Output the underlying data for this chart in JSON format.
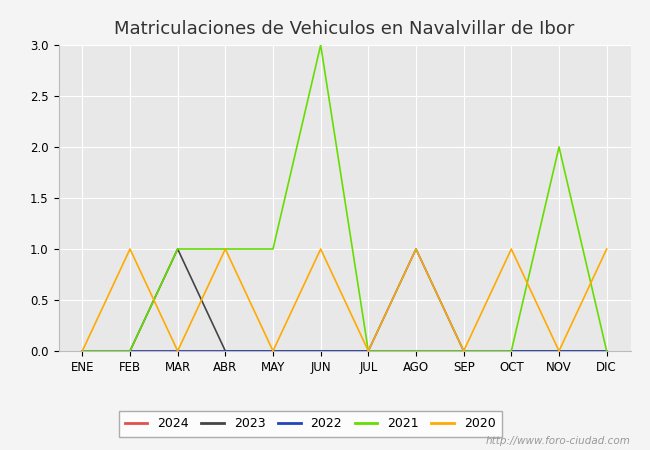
{
  "title": "Matriculaciones de Vehiculos en Navalvillar de Ibor",
  "months": [
    "ENE",
    "FEB",
    "MAR",
    "ABR",
    "MAY",
    "JUN",
    "JUL",
    "AGO",
    "SEP",
    "OCT",
    "NOV",
    "DIC"
  ],
  "series": {
    "2024": {
      "color": "#e05050",
      "data": [
        0,
        0,
        0,
        0,
        0,
        0,
        0,
        0,
        0,
        0,
        0,
        0
      ]
    },
    "2023": {
      "color": "#444444",
      "data": [
        0,
        0,
        1,
        0,
        0,
        0,
        0,
        0,
        0,
        0,
        0,
        0
      ]
    },
    "2022": {
      "color": "#2244bb",
      "data": [
        0,
        0,
        0,
        0,
        0,
        0,
        0,
        1,
        0,
        0,
        0,
        0
      ]
    },
    "2021": {
      "color": "#66dd00",
      "data": [
        0,
        0,
        1,
        1,
        1,
        3,
        0,
        0,
        0,
        0,
        2,
        0
      ]
    },
    "2020": {
      "color": "#ffaa00",
      "data": [
        0,
        1,
        0,
        1,
        0,
        1,
        0,
        1,
        0,
        1,
        0,
        1
      ]
    }
  },
  "ylim": [
    0,
    3.0
  ],
  "yticks": [
    0.0,
    0.5,
    1.0,
    1.5,
    2.0,
    2.5,
    3.0
  ],
  "watermark": "http://www.foro-ciudad.com",
  "plot_bg_color": "#e8e8e8",
  "grid_color": "#ffffff",
  "fig_bg_color": "#f4f4f4",
  "title_color": "#333333",
  "title_fontsize": 13,
  "tick_fontsize": 8.5,
  "legend_fontsize": 9
}
